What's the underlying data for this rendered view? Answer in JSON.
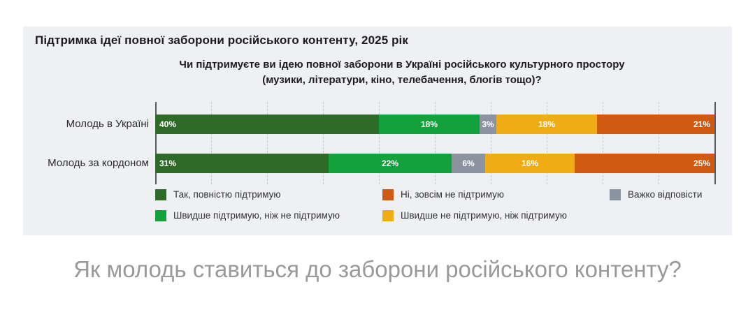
{
  "header": {
    "title": "Підтримка ідеї повної заборони російського контенту, 2025 рік",
    "subtitle": "Чи підтримуєте ви ідею повної заборони в Україні російського культурного простору (музики, літератури, кіно, телебачення, блогів тощо)?"
  },
  "colors": {
    "dark_green": "#2F6B28",
    "green": "#12A13B",
    "gray": "#8C93A0",
    "yellow": "#F0AC15",
    "orange": "#D15A13",
    "panel_background": "#EEF0F4",
    "caption_text": "#98999B"
  },
  "chart_data": {
    "type": "bar",
    "orientation": "horizontal",
    "stacked": true,
    "unit": "%",
    "title": "Підтримка ідеї повної заборони російського контенту, 2025 рік",
    "categories": [
      "Молодь в Україні",
      "Молодь за кордоном"
    ],
    "series": [
      {
        "name": "Так, повністю підтримую",
        "color": "#2F6B28",
        "values": [
          40,
          31
        ]
      },
      {
        "name": "Швидше підтримую, ніж не підтримую",
        "color": "#12A13B",
        "values": [
          18,
          22
        ]
      },
      {
        "name": "Важко відповісти",
        "color": "#8C93A0",
        "values": [
          3,
          6
        ]
      },
      {
        "name": "Швидше не підтримую, ніж підтримую",
        "color": "#F0AC15",
        "values": [
          18,
          16
        ]
      },
      {
        "name": "Ні, зовсім не підтримую",
        "color": "#D15A13",
        "values": [
          21,
          25
        ]
      }
    ],
    "xlim": [
      0,
      100
    ],
    "gridlines": "dashed vertical every 10%",
    "value_labels": "inside segments, white, percent"
  },
  "legend": {
    "columns": [
      [
        {
          "label": "Так, повністю підтримую",
          "color": "#2F6B28"
        },
        {
          "label": "Швидше підтримую, ніж не підтримую",
          "color": "#12A13B"
        }
      ],
      [
        {
          "label": "Ні, зовсім не підтримую",
          "color": "#D15A13"
        },
        {
          "label": "Швидше не підтримую, ніж підтримую",
          "color": "#F0AC15"
        }
      ],
      [
        {
          "label": "Важко відповісти",
          "color": "#8C93A0"
        }
      ]
    ]
  },
  "caption": {
    "text": "Як молодь ставиться до заборони російського контенту?"
  }
}
